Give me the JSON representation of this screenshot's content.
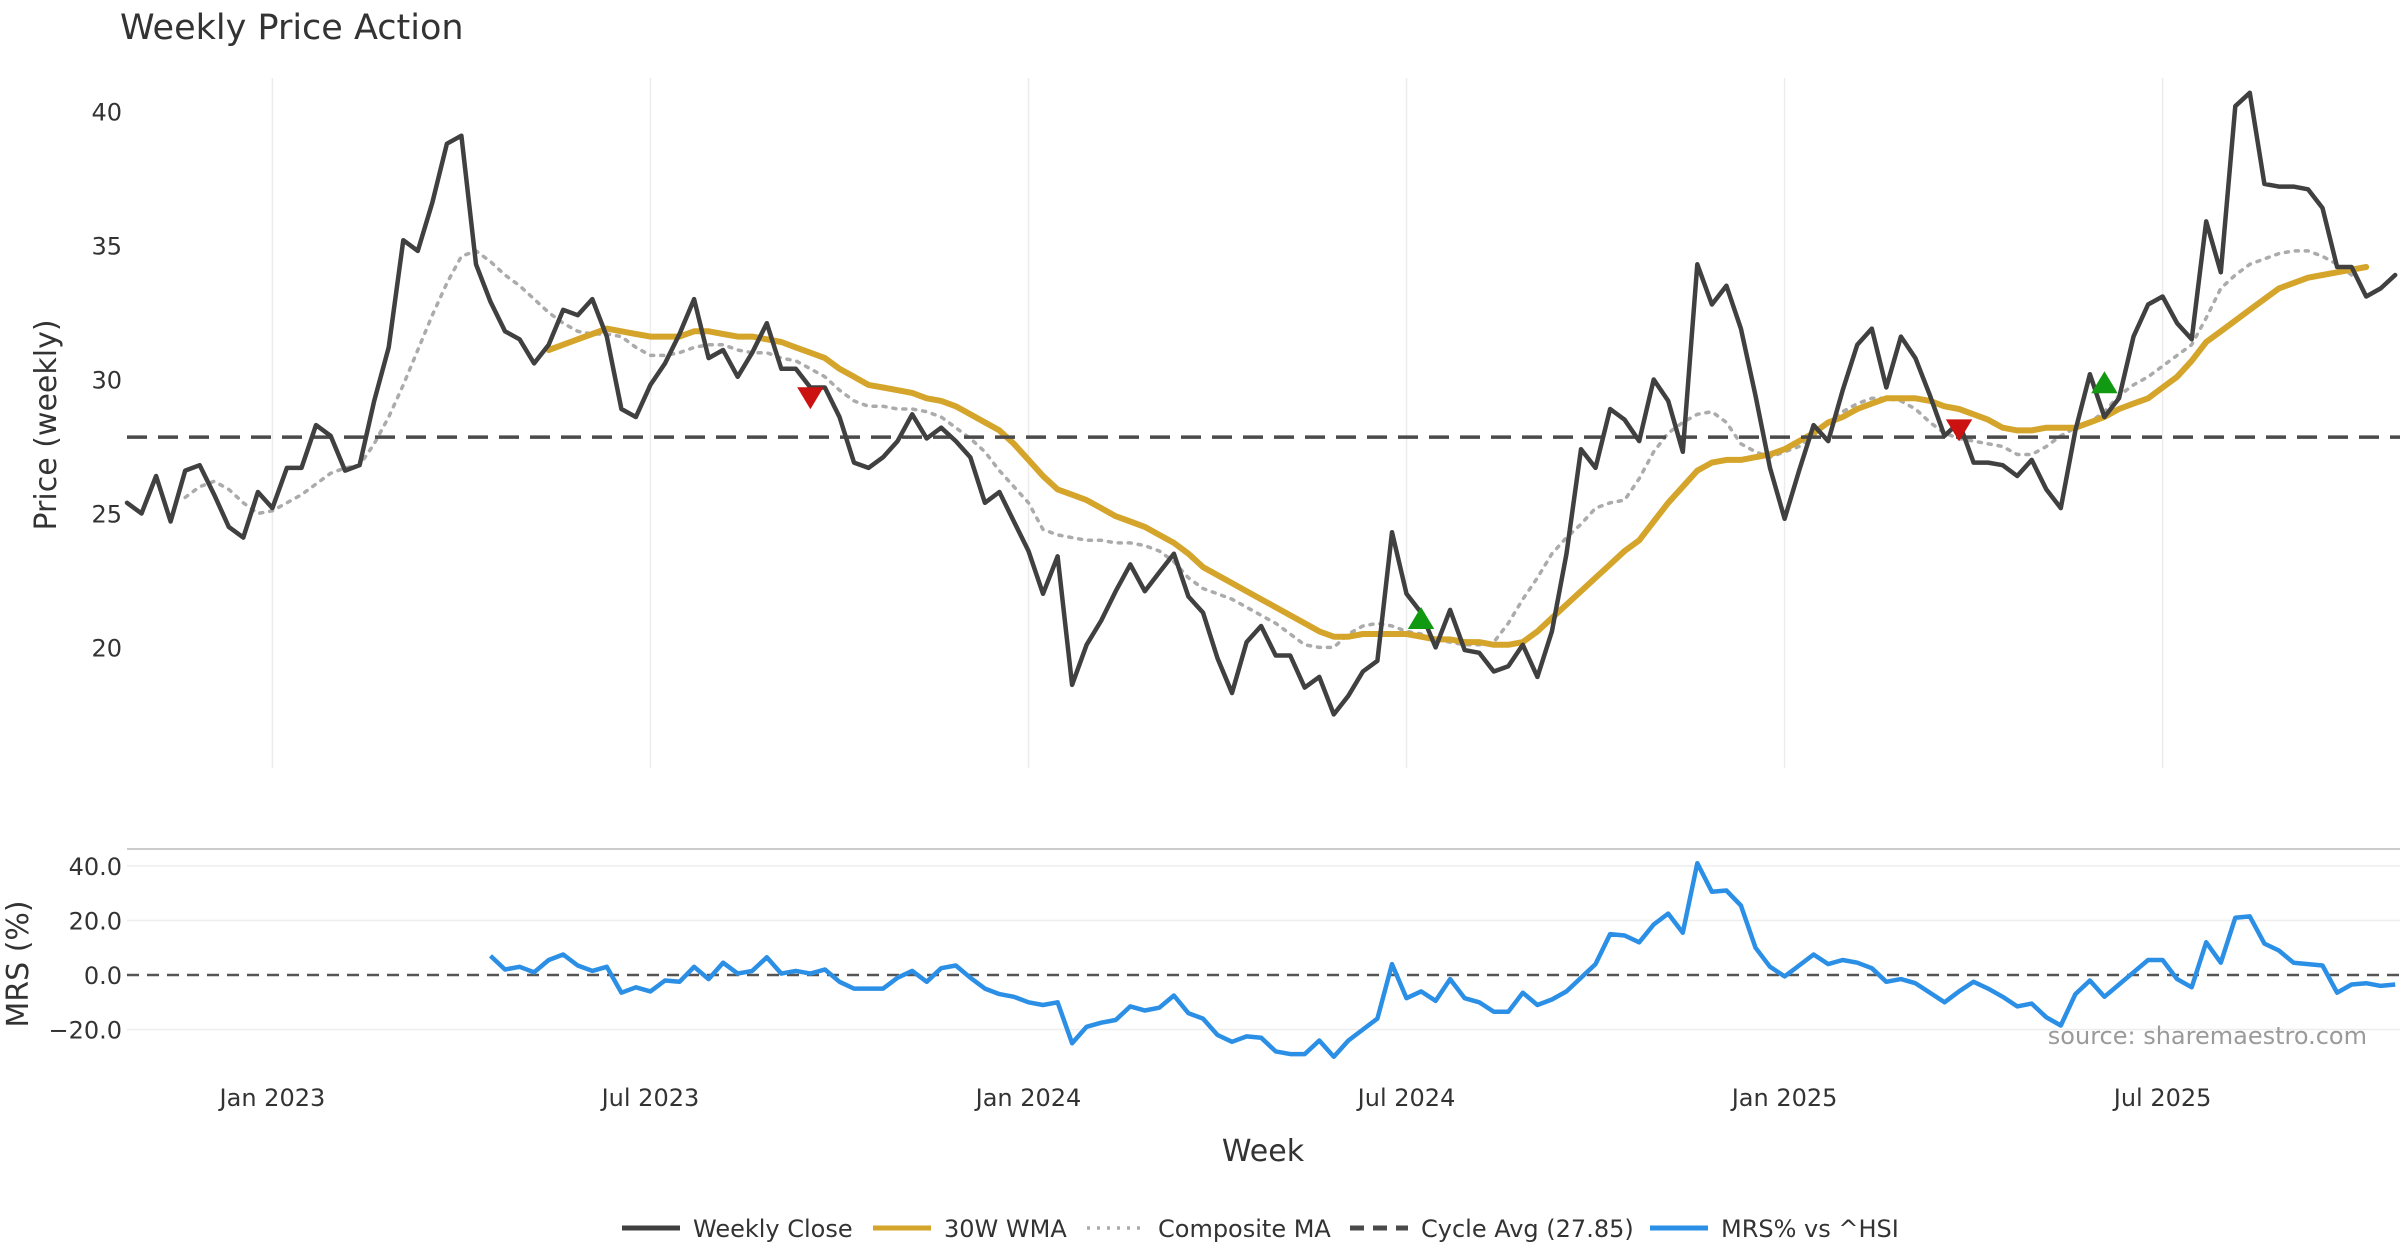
{
  "chart_data": [
    {
      "type": "line",
      "panel": "price",
      "title": "Weekly Price Action",
      "xlabel": "",
      "ylabel": "Price (weekly)",
      "ylim": [
        15.5,
        42.0
      ],
      "yticks": [
        20,
        25,
        30,
        35,
        40
      ],
      "grid": true,
      "x_start": "2022-10-21",
      "x_step_weeks": 1,
      "series": [
        {
          "name": "Weekly Close",
          "color": "#404040",
          "style": "solid",
          "start_index": 0,
          "values": [
            25.4,
            25.0,
            26.4,
            24.7,
            26.6,
            26.8,
            25.7,
            24.5,
            24.1,
            25.8,
            25.2,
            26.7,
            26.7,
            28.3,
            27.9,
            26.6,
            26.8,
            29.2,
            31.2,
            35.2,
            34.8,
            36.6,
            38.8,
            39.1,
            34.3,
            32.9,
            31.8,
            31.5,
            30.6,
            31.3,
            32.6,
            32.4,
            33.0,
            31.6,
            28.9,
            28.6,
            29.8,
            30.6,
            31.7,
            33.0,
            30.8,
            31.1,
            30.1,
            31.0,
            32.1,
            30.4,
            30.4,
            29.7,
            29.7,
            28.6,
            26.9,
            26.7,
            27.1,
            27.7,
            28.7,
            27.8,
            28.2,
            27.7,
            27.1,
            25.4,
            25.8,
            24.7,
            23.6,
            22.0,
            23.4,
            18.6,
            20.1,
            21.0,
            22.1,
            23.1,
            22.1,
            22.8,
            23.5,
            21.9,
            21.3,
            19.6,
            18.3,
            20.2,
            20.8,
            19.7,
            19.7,
            18.5,
            18.9,
            17.5,
            18.2,
            19.1,
            19.5,
            24.3,
            22.0,
            21.3,
            20.0,
            21.4,
            19.9,
            19.8,
            19.1,
            19.3,
            20.1,
            18.9,
            20.6,
            23.5,
            27.4,
            26.7,
            28.9,
            28.5,
            27.7,
            30.0,
            29.2,
            27.3,
            34.3,
            32.8,
            33.5,
            31.9,
            29.4,
            26.7,
            24.8,
            26.6,
            28.3,
            27.7,
            29.6,
            31.3,
            31.9,
            29.7,
            31.6,
            30.8,
            29.4,
            27.9,
            28.4,
            26.9,
            26.9,
            26.8,
            26.4,
            27.0,
            25.9,
            25.2,
            28.1,
            30.2,
            28.6,
            29.3,
            31.6,
            32.8,
            33.1,
            32.1,
            31.5,
            35.9,
            34.0,
            40.2,
            40.7,
            37.3,
            37.2,
            37.2,
            37.1,
            36.4,
            34.2,
            34.2,
            33.1,
            33.4,
            33.9
          ]
        },
        {
          "name": "30W WMA",
          "color": "#d4a52a",
          "style": "solid",
          "start_index": 29,
          "values": [
            31.1,
            31.3,
            31.5,
            31.7,
            31.9,
            31.8,
            31.7,
            31.6,
            31.6,
            31.6,
            31.8,
            31.8,
            31.7,
            31.6,
            31.6,
            31.5,
            31.4,
            31.2,
            31.0,
            30.8,
            30.4,
            30.1,
            29.8,
            29.7,
            29.6,
            29.5,
            29.3,
            29.2,
            29.0,
            28.7,
            28.4,
            28.1,
            27.6,
            27.0,
            26.4,
            25.9,
            25.7,
            25.5,
            25.2,
            24.9,
            24.7,
            24.5,
            24.2,
            23.9,
            23.5,
            23.0,
            22.7,
            22.4,
            22.1,
            21.8,
            21.5,
            21.2,
            20.9,
            20.6,
            20.4,
            20.4,
            20.5,
            20.5,
            20.5,
            20.5,
            20.4,
            20.3,
            20.3,
            20.2,
            20.2,
            20.1,
            20.1,
            20.2,
            20.6,
            21.1,
            21.6,
            22.1,
            22.6,
            23.1,
            23.6,
            24.0,
            24.7,
            25.4,
            26.0,
            26.6,
            26.9,
            27.0,
            27.0,
            27.1,
            27.2,
            27.4,
            27.7,
            28.0,
            28.4,
            28.6,
            28.9,
            29.1,
            29.3,
            29.3,
            29.3,
            29.2,
            29.0,
            28.9,
            28.7,
            28.5,
            28.2,
            28.1,
            28.1,
            28.2,
            28.2,
            28.2,
            28.4,
            28.6,
            28.9,
            29.1,
            29.3,
            29.7,
            30.1,
            30.7,
            31.4,
            31.8,
            32.2,
            32.6,
            33.0,
            33.4,
            33.6,
            33.8,
            33.9,
            34.0,
            34.1,
            34.2
          ]
        },
        {
          "name": "Composite MA",
          "color": "#ababab",
          "style": "dotted",
          "start_index": 4,
          "values": [
            25.6,
            26.0,
            26.2,
            25.9,
            25.4,
            25.0,
            25.1,
            25.4,
            25.7,
            26.1,
            26.5,
            26.7,
            26.8,
            27.6,
            28.6,
            29.8,
            31.1,
            32.4,
            33.6,
            34.6,
            34.8,
            34.4,
            33.9,
            33.5,
            33.0,
            32.5,
            32.1,
            31.8,
            31.7,
            31.7,
            31.6,
            31.2,
            30.9,
            30.9,
            31.0,
            31.2,
            31.3,
            31.3,
            31.1,
            31.0,
            31.0,
            30.8,
            30.7,
            30.4,
            30.1,
            29.6,
            29.2,
            29.0,
            29.0,
            28.9,
            28.9,
            28.8,
            28.6,
            28.2,
            27.8,
            27.3,
            26.6,
            26.0,
            25.4,
            24.4,
            24.2,
            24.1,
            24.0,
            24.0,
            23.9,
            23.9,
            23.8,
            23.6,
            23.2,
            22.6,
            22.2,
            22.0,
            21.8,
            21.5,
            21.2,
            20.9,
            20.5,
            20.1,
            20.0,
            20.0,
            20.5,
            20.8,
            20.9,
            20.8,
            20.6,
            20.5,
            20.3,
            20.2,
            20.1,
            20.1,
            20.2,
            20.9,
            21.8,
            22.6,
            23.5,
            24.1,
            24.6,
            25.2,
            25.4,
            25.5,
            26.3,
            27.3,
            28.0,
            28.4,
            28.7,
            28.8,
            28.4,
            27.6,
            27.3,
            27.1,
            27.3,
            27.5,
            27.9,
            28.4,
            28.8,
            29.1,
            29.3,
            29.3,
            29.2,
            28.9,
            28.4,
            28.0,
            27.8,
            27.7,
            27.6,
            27.5,
            27.2,
            27.2,
            27.5,
            27.9,
            28.2,
            28.4,
            28.8,
            29.4,
            29.8,
            30.1,
            30.5,
            30.9,
            31.3,
            32.3,
            33.4,
            33.9,
            34.3,
            34.5,
            34.7,
            34.8,
            34.8,
            34.6,
            34.3,
            33.9
          ]
        },
        {
          "name": "Cycle Avg (27.85)",
          "color": "#4a4a4a",
          "style": "dashed",
          "constant": 27.85
        }
      ],
      "markers": [
        {
          "type": "sell",
          "shape": "down-triangle",
          "color": "#cc1111",
          "index": 47,
          "value": 29.3
        },
        {
          "type": "buy",
          "shape": "up-triangle",
          "color": "#119911",
          "index": 89,
          "value": 21.1
        },
        {
          "type": "sell",
          "shape": "down-triangle",
          "color": "#cc1111",
          "index": 126,
          "value": 28.1
        },
        {
          "type": "buy",
          "shape": "up-triangle",
          "color": "#119911",
          "index": 136,
          "value": 29.9
        }
      ]
    },
    {
      "type": "line",
      "panel": "mrs",
      "ylabel": "MRS (%)",
      "xlabel": "Week",
      "ylim": [
        -33,
        44
      ],
      "yticks": [
        -20.0,
        0.0,
        20.0,
        40.0
      ],
      "ytick_labels": [
        "−20.0",
        "0.0",
        "20.0",
        "40.0"
      ],
      "xtick_labels": [
        "Jan 2023",
        "Jul 2023",
        "Jan 2024",
        "Jul 2024",
        "Jan 2025",
        "Jul 2025"
      ],
      "xtick_indices": [
        10,
        36,
        62,
        88,
        114,
        140
      ],
      "zero_line": {
        "value": 0,
        "color": "#555555",
        "style": "dashed"
      },
      "series": [
        {
          "name": "MRS% vs ^HSI",
          "color": "#2b8fe6",
          "style": "solid",
          "start_index": 25,
          "values": [
            7.0,
            2.0,
            3.0,
            1.0,
            5.5,
            7.5,
            3.5,
            1.5,
            3.0,
            -6.5,
            -4.5,
            -6.0,
            -2.0,
            -2.5,
            3.0,
            -1.5,
            4.5,
            0.5,
            1.5,
            6.5,
            0.5,
            1.5,
            0.5,
            2.0,
            -2.5,
            -5.0,
            -5.0,
            -5.0,
            -1.0,
            1.5,
            -2.5,
            2.5,
            3.5,
            -1.0,
            -5.0,
            -7.0,
            -8.0,
            -10.0,
            -11.0,
            -10.0,
            -25.0,
            -19.0,
            -17.5,
            -16.5,
            -11.5,
            -13.0,
            -12.0,
            -7.5,
            -14.0,
            -16.0,
            -22.0,
            -24.5,
            -22.5,
            -23.0,
            -28.0,
            -29.0,
            -29.0,
            -24.0,
            -30.0,
            -24.0,
            -20.0,
            -16.0,
            4.0,
            -8.5,
            -6.0,
            -9.5,
            -1.5,
            -8.5,
            -10.0,
            -13.5,
            -13.5,
            -6.5,
            -11.0,
            -9.0,
            -6.0,
            -1.0,
            4.0,
            15.0,
            14.5,
            12.0,
            18.5,
            22.5,
            15.5,
            41.0,
            30.5,
            31.0,
            25.5,
            10.0,
            3.0,
            -0.5,
            3.5,
            7.5,
            4.0,
            5.5,
            4.5,
            2.5,
            -2.5,
            -1.5,
            -3.0,
            -6.5,
            -10.0,
            -6.0,
            -2.5,
            -5.0,
            -8.0,
            -11.5,
            -10.5,
            -15.5,
            -18.5,
            -7.0,
            -2.0,
            -8.0,
            -3.5,
            1.0,
            5.5,
            5.5,
            -1.5,
            -4.5,
            12.0,
            4.5,
            21.0,
            21.5,
            11.5,
            9.0,
            4.5,
            4.0,
            3.5,
            -6.5,
            -3.5,
            -3.0,
            -4.0,
            -3.5
          ]
        }
      ]
    }
  ],
  "page": {
    "title": "Weekly Price Action",
    "source": "source: sharemaestro.com"
  },
  "legend": {
    "placement": "bottom-center",
    "items": [
      {
        "label": "Weekly Close",
        "color": "#404040",
        "style": "solid"
      },
      {
        "label": "30W WMA",
        "color": "#d4a52a",
        "style": "solid"
      },
      {
        "label": "Composite MA",
        "color": "#ababab",
        "style": "dotted"
      },
      {
        "label": "Cycle Avg (27.85)",
        "color": "#4a4a4a",
        "style": "dashed"
      },
      {
        "label": "MRS% vs ^HSI",
        "color": "#2b8fe6",
        "style": "solid"
      }
    ]
  }
}
